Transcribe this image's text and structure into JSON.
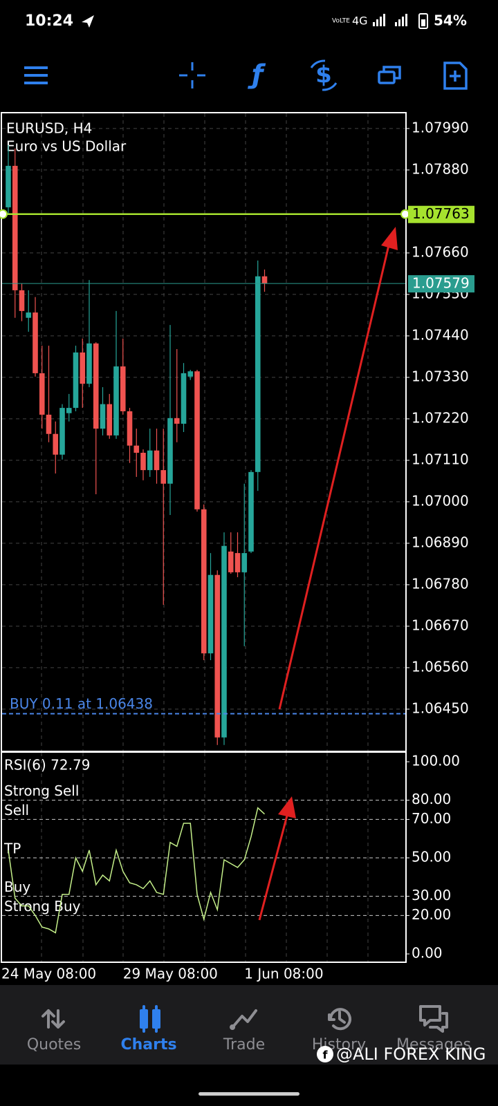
{
  "status_bar": {
    "time": "10:24",
    "network": "4G",
    "battery": "54%"
  },
  "chart_data": [
    {
      "type": "candlestick",
      "title": "EURUSD, H4",
      "subtitle": "Euro vs US Dollar",
      "categories": [
        "24 May 08:00",
        null,
        null,
        null,
        null,
        null,
        null,
        null,
        null,
        null,
        null,
        null,
        null,
        null,
        null,
        null,
        null,
        "29 May 08:00",
        null,
        null,
        null,
        null,
        null,
        null,
        null,
        null,
        null,
        null,
        null,
        null,
        null,
        null,
        null,
        null,
        null,
        "1 Jun 08:00",
        null,
        null,
        null
      ],
      "open": [
        1.07781,
        1.07891,
        1.07561,
        1.07488,
        1.07502,
        1.07341,
        1.07231,
        1.0718,
        1.07125,
        1.07235,
        1.07249,
        1.07396,
        1.07313,
        1.0742,
        1.07194,
        1.07259,
        1.07176,
        1.07359,
        1.0724,
        1.07149,
        1.0713,
        1.07084,
        1.07136,
        1.07084,
        1.07048,
        1.07222,
        1.07207,
        1.07332,
        1.07346,
        1.0698,
        1.06598,
        1.06806,
        1.06375,
        1.06868,
        1.06864,
        1.06813,
        1.06868,
        1.07079,
        1.07598
      ],
      "high": [
        1.07946,
        1.07937,
        1.07579,
        1.07561,
        1.07543,
        1.07414,
        1.07414,
        1.07213,
        1.07259,
        1.07286,
        1.07414,
        1.07433,
        1.07588,
        1.07423,
        1.07304,
        1.07286,
        1.07506,
        1.07433,
        1.07249,
        1.07194,
        1.07139,
        1.07194,
        1.07194,
        1.07194,
        1.07469,
        1.07405,
        1.07368,
        1.0735,
        1.0735,
        1.06993,
        1.06864,
        1.06818,
        1.06919,
        1.06919,
        1.06919,
        1.07048,
        1.07084,
        1.0764,
        1.07616
      ],
      "low": [
        1.07763,
        1.07488,
        1.07479,
        1.07451,
        1.07332,
        1.07194,
        1.07158,
        1.07075,
        1.07112,
        1.07213,
        1.0724,
        1.07249,
        1.07304,
        1.0702,
        1.07176,
        1.07167,
        1.07167,
        1.07231,
        1.07103,
        1.07066,
        1.07057,
        1.07066,
        1.07048,
        1.06727,
        1.06965,
        1.07158,
        1.07185,
        1.07323,
        1.06974,
        1.0658,
        1.0658,
        1.06355,
        1.06355,
        1.06809,
        1.068,
        1.06617,
        1.06864,
        1.07029,
        1.07557
      ],
      "close": [
        1.07891,
        1.07561,
        1.07506,
        1.07502,
        1.07341,
        1.07231,
        1.0718,
        1.07125,
        1.07249,
        1.07249,
        1.07396,
        1.07313,
        1.0742,
        1.07194,
        1.07259,
        1.07176,
        1.07359,
        1.0724,
        1.07149,
        1.0713,
        1.07084,
        1.07136,
        1.07084,
        1.07048,
        1.07222,
        1.07207,
        1.07341,
        1.07346,
        1.0698,
        1.06598,
        1.06806,
        1.06375,
        1.06883,
        1.06813,
        1.06813,
        1.06864,
        1.07079,
        1.07598,
        1.07579
      ],
      "up_color": "#26a69a",
      "down_color": "#ef5350",
      "ylim": [
        1.06338,
        1.08032
      ],
      "yticks": [
        {
          "value": 1.0799,
          "label": "1.07990"
        },
        {
          "value": 1.0788,
          "label": "1.07880"
        },
        {
          "value": 1.0766,
          "label": "1.07660"
        },
        {
          "value": 1.0755,
          "label": "1.07550"
        },
        {
          "value": 1.0744,
          "label": "1.07440"
        },
        {
          "value": 1.0733,
          "label": "1.07330"
        },
        {
          "value": 1.0722,
          "label": "1.07220"
        },
        {
          "value": 1.0711,
          "label": "1.07110"
        },
        {
          "value": 1.07,
          "label": "1.07000"
        },
        {
          "value": 1.0689,
          "label": "1.06890"
        },
        {
          "value": 1.0678,
          "label": "1.06780"
        },
        {
          "value": 1.0667,
          "label": "1.06670"
        },
        {
          "value": 1.0656,
          "label": "1.06560"
        },
        {
          "value": 1.0645,
          "label": "1.06450"
        }
      ],
      "grid": true,
      "price_lines": [
        {
          "value": 1.07763,
          "label": "1.07763",
          "color": "#a6e22e"
        },
        {
          "value": 1.07579,
          "label": "1.07579",
          "color": "#2a9d8f"
        },
        {
          "value": 1.06438,
          "label": "BUY 0.11 at 1.06438",
          "color": "#4a86e8"
        }
      ]
    },
    {
      "type": "line",
      "title": "RSI(6) 72.79",
      "color": "#c5f08a",
      "values": [
        54,
        29,
        25,
        25,
        20,
        14,
        13,
        11,
        31,
        31,
        50,
        43,
        54,
        36,
        41,
        38,
        54,
        43,
        37,
        36,
        34,
        38,
        32,
        31,
        58,
        56,
        68,
        68,
        31,
        18,
        32,
        23,
        49,
        47,
        45,
        49,
        61,
        76,
        72.79
      ],
      "ylim": [
        -4.32,
        105.04
      ],
      "yticks": [
        {
          "value": 100,
          "label": "100.00"
        },
        {
          "value": 80,
          "label": "80.00"
        },
        {
          "value": 70,
          "label": "70.00"
        },
        {
          "value": 50,
          "label": "50.00"
        },
        {
          "value": 30,
          "label": "30.00"
        },
        {
          "value": 20,
          "label": "20.00"
        },
        {
          "value": 0,
          "label": "0.00"
        }
      ],
      "levels": [
        {
          "value": 80,
          "label": "Strong Sell"
        },
        {
          "value": 70,
          "label": "Sell"
        },
        {
          "value": 50,
          "label": "TP"
        },
        {
          "value": 30,
          "label": "Buy"
        },
        {
          "value": 20,
          "label": "Strong Buy"
        }
      ]
    }
  ],
  "tabs": [
    "Quotes",
    "Charts",
    "Trade",
    "History",
    "Messages"
  ],
  "active_tab": 1,
  "watermark": "@ALI FOREX KING"
}
